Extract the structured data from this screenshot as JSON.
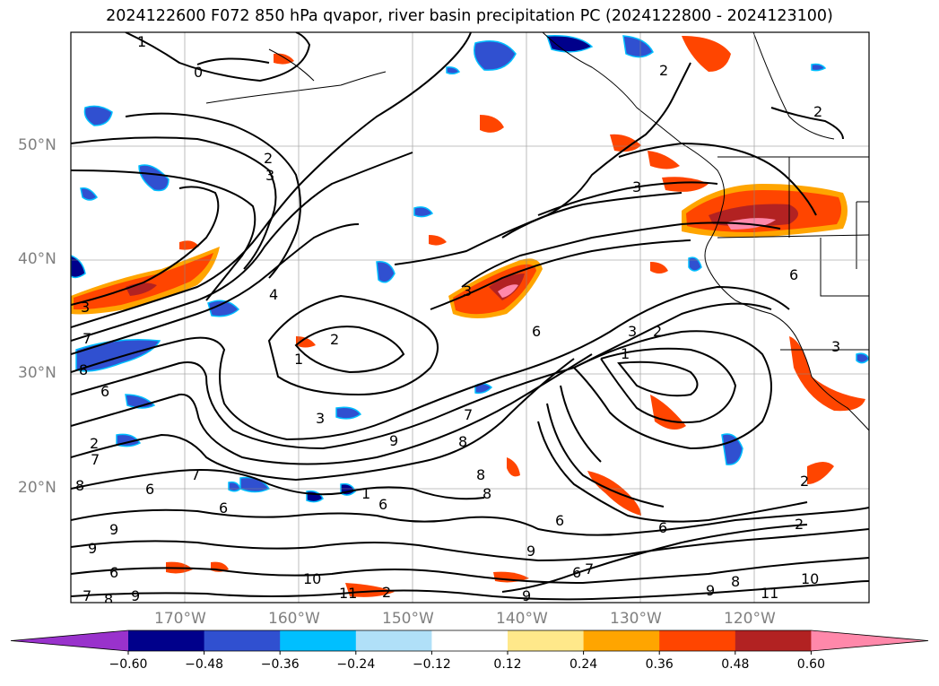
{
  "title": "2024122600 F072 850 hPa qvapor, river basin precipitation PC (2024122800 - 2024123100)",
  "lat_labels": [
    "50°N",
    "40°N",
    "30°N",
    "20°N"
  ],
  "lon_labels": [
    "170°W",
    "160°W",
    "150°W",
    "140°W",
    "130°W",
    "120°W"
  ],
  "contour_labels": [
    "0",
    "1",
    "2",
    "3",
    "4",
    "6",
    "7",
    "8",
    "9",
    "10",
    "11"
  ],
  "colorbar": {
    "ticks": [
      "−0.60",
      "−0.48",
      "−0.36",
      "−0.24",
      "−0.12",
      "0.12",
      "0.24",
      "0.36",
      "0.48",
      "0.60"
    ],
    "colors": [
      "#9932cc",
      "#00008b",
      "#3050d0",
      "#00bfff",
      "#b0e0f8",
      "#ffffff",
      "#ffe88a",
      "#ffa500",
      "#ff4500",
      "#b22222",
      "#ff88aa"
    ]
  }
}
